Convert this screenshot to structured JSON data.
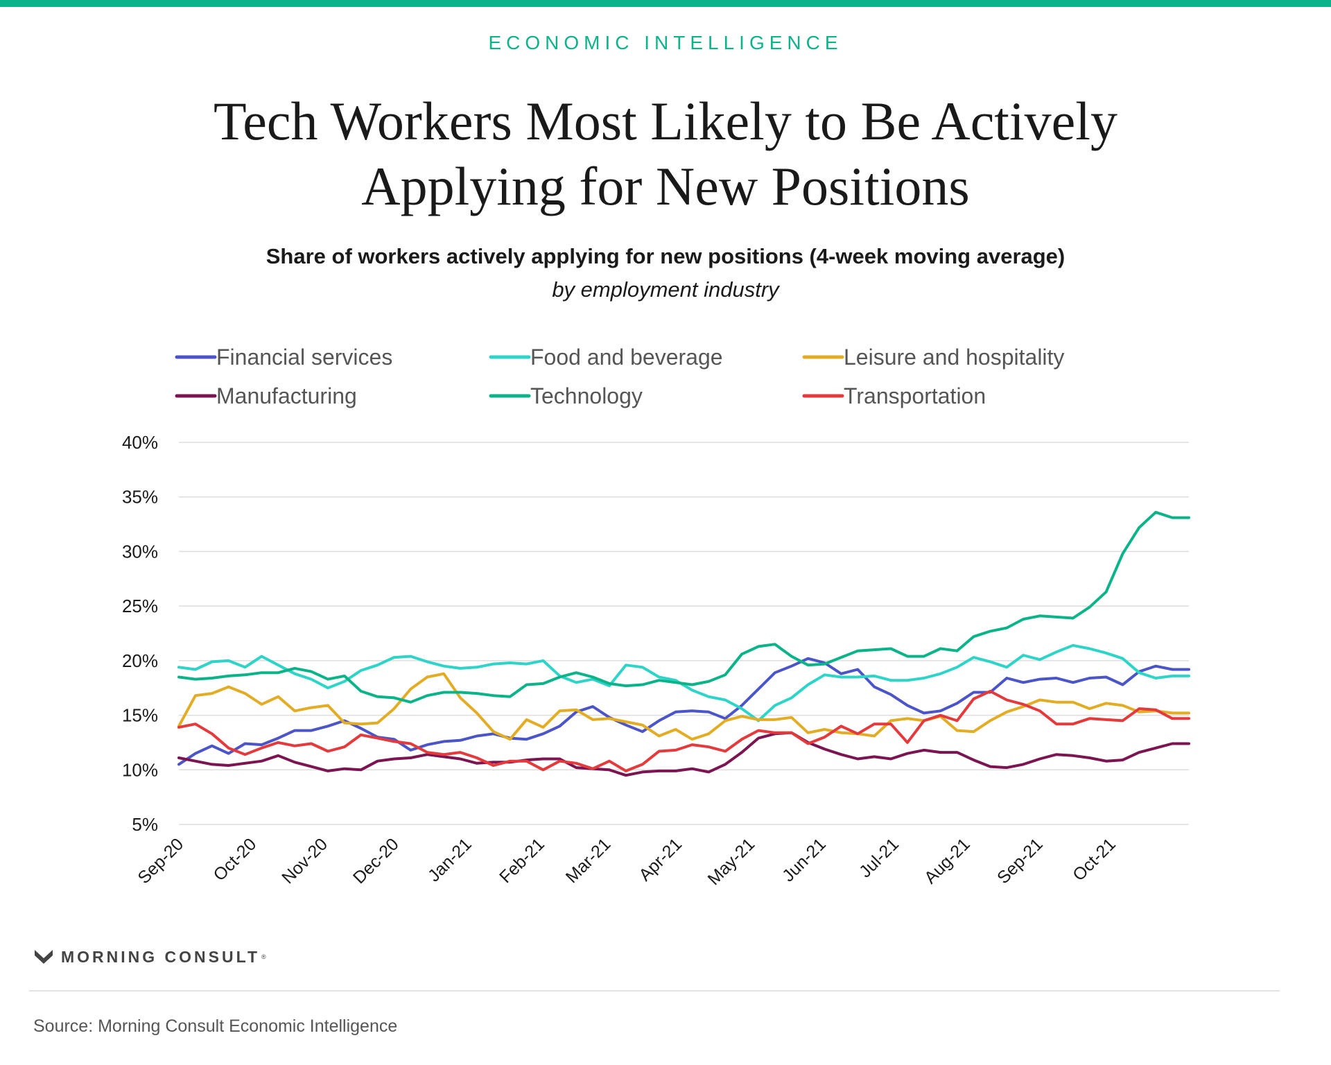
{
  "header": {
    "eyebrow": "ECONOMIC INTELLIGENCE",
    "title_line1": "Tech Workers Most Likely to Be Actively",
    "title_line2": "Applying for New Positions",
    "subtitle": "Share of workers actively applying for new positions (4-week moving average)",
    "subtitle_italic": "by employment industry"
  },
  "colors": {
    "brand_green": "#0BB389",
    "grid": "#dddddd",
    "axis_text": "#1a1a1a",
    "legend_text": "#555555"
  },
  "footer": {
    "logo_text": "MORNING CONSULT",
    "logo_tm": "®",
    "logo_icon": "morning-consult-m-icon",
    "source": "Source: Morning Consult Economic Intelligence"
  },
  "chart_data": {
    "type": "line",
    "title": "Share of workers actively applying for new positions (4-week moving average)",
    "subtitle": "by employment industry",
    "xlabel": "",
    "ylabel": "",
    "ylim": [
      5,
      40
    ],
    "y_ticks": [
      "5%",
      "10%",
      "15%",
      "20%",
      "25%",
      "30%",
      "35%",
      "40%"
    ],
    "y_tick_values": [
      5,
      10,
      15,
      20,
      25,
      30,
      35,
      40
    ],
    "x_tick_labels": [
      "Sep-20",
      "Oct-20",
      "Nov-20",
      "Dec-20",
      "Jan-21",
      "Feb-21",
      "Mar-21",
      "Apr-21",
      "May-21",
      "Jun-21",
      "Jul-21",
      "Aug-21",
      "Sep-21",
      "Oct-21"
    ],
    "x_tick_weeks": [
      0,
      4.4,
      8.7,
      13,
      17.4,
      21.8,
      25.8,
      30.1,
      34.5,
      38.8,
      43.2,
      47.5,
      51.9,
      56.3
    ],
    "n_weeks": 62,
    "grid": "horizontal",
    "legend_position": "top",
    "series": [
      {
        "name": "Financial services",
        "color": "#4B55C8",
        "values": [
          10.5,
          11.5,
          12.2,
          11.5,
          12.4,
          12.3,
          12.9,
          13.6,
          13.6,
          14.0,
          14.5,
          13.8,
          13.0,
          12.8,
          11.8,
          12.3,
          12.6,
          12.7,
          13.1,
          13.3,
          12.9,
          12.8,
          13.3,
          14.0,
          15.3,
          15.8,
          14.8,
          14.1,
          13.5,
          14.5,
          15.3,
          15.4,
          15.3,
          14.7,
          15.9,
          17.4,
          18.9,
          19.5,
          20.2,
          19.8,
          18.8,
          19.2,
          17.6,
          16.9,
          15.9,
          15.2,
          15.4,
          16.1,
          17.1,
          17.1,
          18.4,
          18.0,
          18.3,
          18.4,
          18.0,
          18.4,
          18.5,
          17.8,
          19.0,
          19.5,
          19.2,
          19.2
        ]
      },
      {
        "name": "Food and beverage",
        "color": "#2DD4C7",
        "values": [
          19.4,
          19.2,
          19.9,
          20.0,
          19.4,
          20.4,
          19.6,
          18.8,
          18.3,
          17.5,
          18.1,
          19.1,
          19.6,
          20.3,
          20.4,
          19.9,
          19.5,
          19.3,
          19.4,
          19.7,
          19.8,
          19.7,
          20.0,
          18.6,
          18.0,
          18.3,
          17.7,
          19.6,
          19.4,
          18.5,
          18.2,
          17.3,
          16.7,
          16.4,
          15.6,
          14.5,
          15.9,
          16.6,
          17.8,
          18.7,
          18.5,
          18.5,
          18.6,
          18.2,
          18.2,
          18.4,
          18.8,
          19.4,
          20.3,
          19.9,
          19.4,
          20.5,
          20.1,
          20.8,
          21.4,
          21.1,
          20.7,
          20.2,
          18.9,
          18.4,
          18.6,
          18.6
        ]
      },
      {
        "name": "Leisure and hospitality",
        "color": "#E2AD25",
        "values": [
          14.0,
          16.8,
          17.0,
          17.6,
          17.0,
          16.0,
          16.7,
          15.4,
          15.7,
          15.9,
          14.3,
          14.2,
          14.3,
          15.6,
          17.4,
          18.5,
          18.8,
          16.6,
          15.2,
          13.5,
          12.8,
          14.6,
          13.9,
          15.4,
          15.5,
          14.6,
          14.7,
          14.4,
          14.1,
          13.1,
          13.7,
          12.8,
          13.3,
          14.5,
          14.9,
          14.6,
          14.6,
          14.8,
          13.4,
          13.7,
          13.4,
          13.3,
          13.1,
          14.5,
          14.7,
          14.5,
          14.9,
          13.6,
          13.5,
          14.5,
          15.3,
          15.8,
          16.4,
          16.2,
          16.2,
          15.6,
          16.1,
          15.9,
          15.3,
          15.4,
          15.2,
          15.2
        ]
      },
      {
        "name": "Manufacturing",
        "color": "#7B1450",
        "values": [
          11.1,
          10.8,
          10.5,
          10.4,
          10.6,
          10.8,
          11.3,
          10.7,
          10.3,
          9.9,
          10.1,
          10.0,
          10.8,
          11.0,
          11.1,
          11.4,
          11.2,
          11.0,
          10.6,
          10.7,
          10.7,
          10.9,
          11.0,
          11.0,
          10.2,
          10.1,
          10.0,
          9.5,
          9.8,
          9.9,
          9.9,
          10.1,
          9.8,
          10.5,
          11.6,
          12.9,
          13.3,
          13.4,
          12.5,
          11.9,
          11.4,
          11.0,
          11.2,
          11.0,
          11.5,
          11.8,
          11.6,
          11.6,
          10.9,
          10.3,
          10.2,
          10.5,
          11.0,
          11.4,
          11.3,
          11.1,
          10.8,
          10.9,
          11.6,
          12.0,
          12.4,
          12.4
        ]
      },
      {
        "name": "Technology",
        "color": "#0BB389",
        "values": [
          18.5,
          18.3,
          18.4,
          18.6,
          18.7,
          18.9,
          18.9,
          19.3,
          19.0,
          18.3,
          18.6,
          17.2,
          16.7,
          16.6,
          16.2,
          16.8,
          17.1,
          17.1,
          17.0,
          16.8,
          16.7,
          17.8,
          17.9,
          18.5,
          18.9,
          18.5,
          17.9,
          17.7,
          17.8,
          18.2,
          18.0,
          17.8,
          18.1,
          18.7,
          20.6,
          21.3,
          21.5,
          20.4,
          19.6,
          19.7,
          20.3,
          20.9,
          21.0,
          21.1,
          20.4,
          20.4,
          21.1,
          20.9,
          22.2,
          22.7,
          23.0,
          23.8,
          24.1,
          24.0,
          23.9,
          24.9,
          26.3,
          29.8,
          32.2,
          33.6,
          33.1,
          33.1
        ]
      },
      {
        "name": "Transportation",
        "color": "#E43A3C",
        "values": [
          13.9,
          14.2,
          13.3,
          12.0,
          11.4,
          12.0,
          12.5,
          12.2,
          12.4,
          11.7,
          12.1,
          13.2,
          12.9,
          12.6,
          12.4,
          11.6,
          11.4,
          11.6,
          11.1,
          10.4,
          10.8,
          10.8,
          10.0,
          10.8,
          10.6,
          10.1,
          10.8,
          9.9,
          10.5,
          11.7,
          11.8,
          12.3,
          12.1,
          11.7,
          12.8,
          13.6,
          13.4,
          13.4,
          12.4,
          13.0,
          14.0,
          13.3,
          14.2,
          14.2,
          12.5,
          14.5,
          15.0,
          14.5,
          16.5,
          17.2,
          16.4,
          16.0,
          15.4,
          14.2,
          14.2,
          14.7,
          14.6,
          14.5,
          15.6,
          15.5,
          14.7,
          14.7
        ]
      }
    ]
  }
}
